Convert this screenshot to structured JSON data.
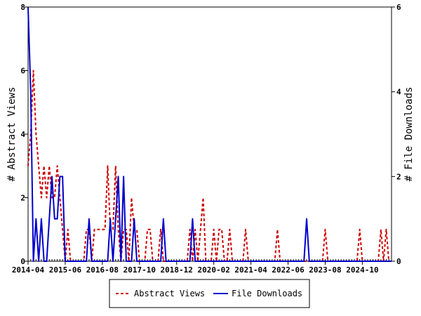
{
  "chart_data": {
    "type": "line",
    "title": "",
    "xlabel": "",
    "ylabel": "# Abstract Views",
    "y2label": "# File Downloads",
    "x_tick_labels": [
      "2014-04",
      "2015-06",
      "2016-08",
      "2017-10",
      "2018-12",
      "2020-02",
      "2021-04",
      "2022-06",
      "2023-08",
      "2024-10"
    ],
    "x_tick_positions": [
      0,
      14,
      28,
      42,
      56,
      70,
      84,
      98,
      112,
      126
    ],
    "x_range": [
      0,
      137
    ],
    "ylim": [
      0,
      8
    ],
    "y_ticks": [
      0,
      2,
      4,
      6,
      8
    ],
    "y2lim": [
      0,
      6
    ],
    "y2_ticks": [
      0,
      2,
      4,
      6
    ],
    "grid": false,
    "legend_placement": "bottom-center",
    "series": [
      {
        "name": "Abstract Views",
        "axis": "left",
        "color": "#cc0000",
        "dash": "dashed",
        "points": [
          [
            0,
            3
          ],
          [
            1,
            4
          ],
          [
            2,
            6
          ],
          [
            3,
            4
          ],
          [
            4,
            3
          ],
          [
            5,
            2
          ],
          [
            6,
            3
          ],
          [
            7,
            2
          ],
          [
            8,
            3
          ],
          [
            9,
            2
          ],
          [
            10,
            2
          ],
          [
            11,
            3
          ],
          [
            12,
            2
          ],
          [
            13,
            1
          ],
          [
            14,
            0
          ],
          [
            15,
            1
          ],
          [
            16,
            0
          ],
          [
            17,
            0
          ],
          [
            18,
            0
          ],
          [
            19,
            0
          ],
          [
            20,
            0
          ],
          [
            21,
            0
          ],
          [
            22,
            1
          ],
          [
            23,
            1
          ],
          [
            24,
            0
          ],
          [
            25,
            1
          ],
          [
            26,
            1
          ],
          [
            27,
            1
          ],
          [
            28,
            1
          ],
          [
            29,
            1
          ],
          [
            30,
            3
          ],
          [
            31,
            1
          ],
          [
            32,
            1
          ],
          [
            33,
            3
          ],
          [
            34,
            1
          ],
          [
            35,
            0
          ],
          [
            36,
            1
          ],
          [
            37,
            1
          ],
          [
            38,
            0
          ],
          [
            39,
            2
          ],
          [
            40,
            1
          ],
          [
            41,
            1
          ],
          [
            42,
            0
          ],
          [
            43,
            0
          ],
          [
            44,
            0
          ],
          [
            45,
            1
          ],
          [
            46,
            1
          ],
          [
            47,
            0
          ],
          [
            48,
            0
          ],
          [
            49,
            0
          ],
          [
            50,
            1
          ],
          [
            51,
            0
          ],
          [
            52,
            0
          ],
          [
            53,
            0
          ],
          [
            54,
            0
          ],
          [
            55,
            0
          ],
          [
            56,
            0
          ],
          [
            57,
            0
          ],
          [
            58,
            0
          ],
          [
            59,
            0
          ],
          [
            60,
            0
          ],
          [
            61,
            1
          ],
          [
            62,
            0
          ],
          [
            63,
            1
          ],
          [
            64,
            0
          ],
          [
            65,
            1
          ],
          [
            66,
            2
          ],
          [
            67,
            0
          ],
          [
            68,
            0
          ],
          [
            69,
            0
          ],
          [
            70,
            1
          ],
          [
            71,
            0
          ],
          [
            72,
            1
          ],
          [
            73,
            1
          ],
          [
            74,
            0
          ],
          [
            75,
            0
          ],
          [
            76,
            1
          ],
          [
            77,
            0
          ],
          [
            78,
            0
          ],
          [
            79,
            0
          ],
          [
            80,
            0
          ],
          [
            81,
            0
          ],
          [
            82,
            1
          ],
          [
            83,
            0
          ],
          [
            84,
            0
          ],
          [
            85,
            0
          ],
          [
            86,
            0
          ],
          [
            87,
            0
          ],
          [
            88,
            0
          ],
          [
            89,
            0
          ],
          [
            90,
            0
          ],
          [
            91,
            0
          ],
          [
            92,
            0
          ],
          [
            93,
            0
          ],
          [
            94,
            1
          ],
          [
            95,
            0
          ],
          [
            96,
            0
          ],
          [
            97,
            0
          ],
          [
            98,
            0
          ],
          [
            99,
            0
          ],
          [
            100,
            0
          ],
          [
            101,
            0
          ],
          [
            102,
            0
          ],
          [
            103,
            0
          ],
          [
            104,
            0
          ],
          [
            105,
            0
          ],
          [
            106,
            0
          ],
          [
            107,
            0
          ],
          [
            108,
            0
          ],
          [
            109,
            0
          ],
          [
            110,
            0
          ],
          [
            111,
            0
          ],
          [
            112,
            1
          ],
          [
            113,
            0
          ],
          [
            114,
            0
          ],
          [
            115,
            0
          ],
          [
            116,
            0
          ],
          [
            117,
            0
          ],
          [
            118,
            0
          ],
          [
            119,
            0
          ],
          [
            120,
            0
          ],
          [
            121,
            0
          ],
          [
            122,
            0
          ],
          [
            123,
            0
          ],
          [
            124,
            0
          ],
          [
            125,
            1
          ],
          [
            126,
            0
          ],
          [
            127,
            0
          ],
          [
            128,
            0
          ],
          [
            129,
            0
          ],
          [
            130,
            0
          ],
          [
            131,
            0
          ],
          [
            132,
            0
          ],
          [
            133,
            1
          ],
          [
            134,
            0
          ],
          [
            135,
            1
          ],
          [
            136,
            0
          ],
          [
            137,
            0
          ]
        ]
      },
      {
        "name": "File Downloads",
        "axis": "right",
        "color": "#0000cc",
        "dash": "solid",
        "points": [
          [
            0,
            6
          ],
          [
            1,
            4
          ],
          [
            2,
            0
          ],
          [
            3,
            1
          ],
          [
            4,
            0
          ],
          [
            5,
            1
          ],
          [
            6,
            0
          ],
          [
            7,
            0
          ],
          [
            8,
            1
          ],
          [
            9,
            2
          ],
          [
            10,
            1
          ],
          [
            11,
            1
          ],
          [
            12,
            2
          ],
          [
            13,
            2
          ],
          [
            14,
            0
          ],
          [
            15,
            0
          ],
          [
            16,
            0
          ],
          [
            17,
            0
          ],
          [
            18,
            0
          ],
          [
            19,
            0
          ],
          [
            20,
            0
          ],
          [
            21,
            0
          ],
          [
            22,
            0
          ],
          [
            23,
            1
          ],
          [
            24,
            0
          ],
          [
            25,
            0
          ],
          [
            26,
            0
          ],
          [
            27,
            0
          ],
          [
            28,
            0
          ],
          [
            29,
            0
          ],
          [
            30,
            0
          ],
          [
            31,
            1
          ],
          [
            32,
            0
          ],
          [
            33,
            1
          ],
          [
            34,
            2
          ],
          [
            35,
            0
          ],
          [
            36,
            2
          ],
          [
            37,
            0
          ],
          [
            38,
            0
          ],
          [
            39,
            0
          ],
          [
            40,
            1
          ],
          [
            41,
            0
          ],
          [
            42,
            0
          ],
          [
            43,
            0
          ],
          [
            44,
            0
          ],
          [
            45,
            0
          ],
          [
            46,
            0
          ],
          [
            47,
            0
          ],
          [
            48,
            0
          ],
          [
            49,
            0
          ],
          [
            50,
            0
          ],
          [
            51,
            1
          ],
          [
            52,
            0
          ],
          [
            53,
            0
          ],
          [
            54,
            0
          ],
          [
            55,
            0
          ],
          [
            56,
            0
          ],
          [
            57,
            0
          ],
          [
            58,
            0
          ],
          [
            59,
            0
          ],
          [
            60,
            0
          ],
          [
            61,
            0
          ],
          [
            62,
            1
          ],
          [
            63,
            0
          ],
          [
            64,
            0
          ],
          [
            65,
            0
          ],
          [
            66,
            0
          ],
          [
            67,
            0
          ],
          [
            68,
            0
          ],
          [
            69,
            0
          ],
          [
            70,
            0
          ],
          [
            71,
            0
          ],
          [
            72,
            0
          ],
          [
            73,
            0
          ],
          [
            74,
            0
          ],
          [
            75,
            0
          ],
          [
            76,
            0
          ],
          [
            77,
            0
          ],
          [
            78,
            0
          ],
          [
            79,
            0
          ],
          [
            80,
            0
          ],
          [
            81,
            0
          ],
          [
            82,
            0
          ],
          [
            83,
            0
          ],
          [
            84,
            0
          ],
          [
            85,
            0
          ],
          [
            86,
            0
          ],
          [
            87,
            0
          ],
          [
            88,
            0
          ],
          [
            89,
            0
          ],
          [
            90,
            0
          ],
          [
            91,
            0
          ],
          [
            92,
            0
          ],
          [
            93,
            0
          ],
          [
            94,
            0
          ],
          [
            95,
            0
          ],
          [
            96,
            0
          ],
          [
            97,
            0
          ],
          [
            98,
            0
          ],
          [
            99,
            0
          ],
          [
            100,
            0
          ],
          [
            101,
            0
          ],
          [
            102,
            0
          ],
          [
            103,
            0
          ],
          [
            104,
            0
          ],
          [
            105,
            1
          ],
          [
            106,
            0
          ],
          [
            107,
            0
          ],
          [
            108,
            0
          ],
          [
            109,
            0
          ],
          [
            110,
            0
          ],
          [
            111,
            0
          ],
          [
            112,
            0
          ],
          [
            113,
            0
          ],
          [
            114,
            0
          ],
          [
            115,
            0
          ],
          [
            116,
            0
          ],
          [
            117,
            0
          ],
          [
            118,
            0
          ],
          [
            119,
            0
          ],
          [
            120,
            0
          ],
          [
            121,
            0
          ],
          [
            122,
            0
          ],
          [
            123,
            0
          ],
          [
            124,
            0
          ],
          [
            125,
            0
          ],
          [
            126,
            0
          ],
          [
            127,
            0
          ],
          [
            128,
            0
          ],
          [
            129,
            0
          ],
          [
            130,
            0
          ],
          [
            131,
            0
          ],
          [
            132,
            0
          ],
          [
            133,
            0
          ],
          [
            134,
            0
          ],
          [
            135,
            0
          ],
          [
            136,
            0
          ],
          [
            137,
            0
          ]
        ]
      }
    ]
  }
}
